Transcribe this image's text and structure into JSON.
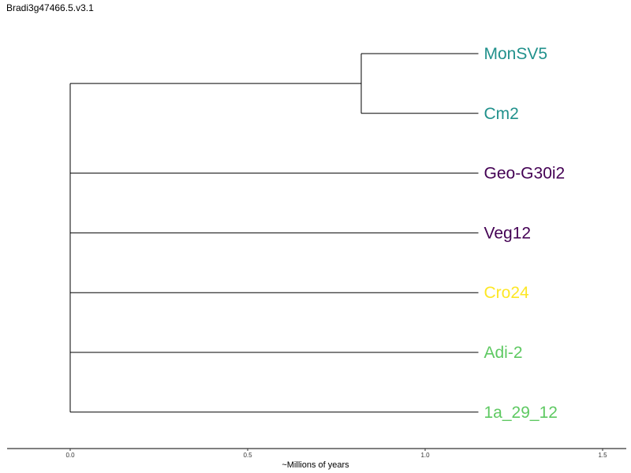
{
  "title": "Bradi3g47466.5.v3.1",
  "axis": {
    "label": "~Millions of years",
    "ticks": [
      "0.0",
      "0.5",
      "1.0",
      "1.5"
    ],
    "tick_values": [
      0.0,
      0.5,
      1.0,
      1.5
    ],
    "xlim": [
      -0.18,
      1.57
    ]
  },
  "colors": {
    "teal": "#21918c",
    "purple": "#440154",
    "yellow": "#fde725",
    "green": "#5ec962"
  },
  "tree": {
    "tips": [
      {
        "label": "MonSV5",
        "color": "#21918c",
        "end": 1.15
      },
      {
        "label": "Cm2",
        "color": "#21918c",
        "end": 1.15
      },
      {
        "label": "Geo-G30i2",
        "color": "#440154",
        "end": 1.15
      },
      {
        "label": "Veg12",
        "color": "#440154",
        "end": 1.15
      },
      {
        "label": "Cro24",
        "color": "#fde725",
        "end": 1.15
      },
      {
        "label": "Adi-2",
        "color": "#5ec962",
        "end": 1.15
      },
      {
        "label": "1a_29_12",
        "color": "#5ec962",
        "end": 1.15
      }
    ],
    "root_x": 0.0,
    "clade": {
      "members": [
        "MonSV5",
        "Cm2"
      ],
      "node_x": 0.82
    }
  }
}
